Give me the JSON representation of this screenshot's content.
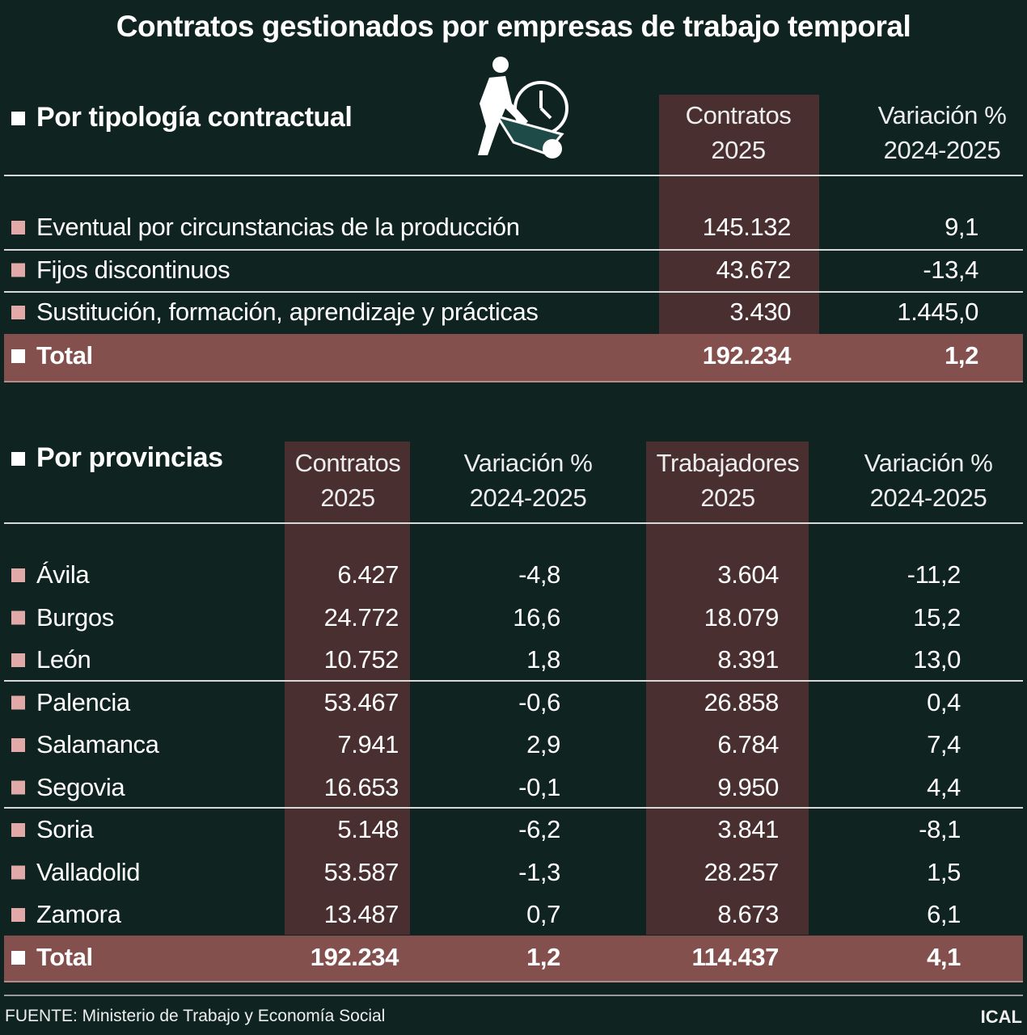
{
  "title": "Contratos gestionados por empresas de trabajo temporal",
  "tipologia": {
    "heading": "Por tipología contractual",
    "columns": [
      [
        "Contratos",
        "2025"
      ],
      [
        "Variación %",
        "2024-2025"
      ]
    ],
    "rows": [
      [
        "Eventual por circunstancias de la producción",
        "145.132",
        "9,1"
      ],
      [
        "Fijos discontinuos",
        "43.672",
        "-13,4"
      ],
      [
        "Sustitución, formación, aprendizaje y prácticas",
        "3.430",
        "1.445,0"
      ]
    ],
    "total": [
      "Total",
      "192.234",
      "1,2"
    ]
  },
  "provincias": {
    "heading": "Por provincias",
    "columns": [
      [
        "Contratos",
        "2025"
      ],
      [
        "Variación %",
        "2024-2025"
      ],
      [
        "Trabajadores",
        "2025"
      ],
      [
        "Variación %",
        "2024-2025"
      ]
    ],
    "rows": [
      [
        "Ávila",
        "6.427",
        "-4,8",
        "3.604",
        "-11,2"
      ],
      [
        "Burgos",
        "24.772",
        "16,6",
        "18.079",
        "15,2"
      ],
      [
        "León",
        "10.752",
        "1,8",
        "8.391",
        "13,0"
      ],
      [
        "Palencia",
        "53.467",
        "-0,6",
        "26.858",
        "0,4"
      ],
      [
        "Salamanca",
        "7.941",
        "2,9",
        "6.784",
        "7,4"
      ],
      [
        "Segovia",
        "16.653",
        "-0,1",
        "9.950",
        "4,4"
      ],
      [
        "Soria",
        "5.148",
        "-6,2",
        "3.841",
        "-8,1"
      ],
      [
        "Valladolid",
        "53.587",
        "-1,3",
        "28.257",
        "1,5"
      ],
      [
        "Zamora",
        "13.487",
        "0,7",
        "8.673",
        "6,1"
      ]
    ],
    "total": [
      "Total",
      "192.234",
      "1,2",
      "114.437",
      "4,1"
    ]
  },
  "footer": {
    "source": "FUENTE:  Ministerio de Trabajo y Economía Social",
    "brand": "ICAL"
  }
}
